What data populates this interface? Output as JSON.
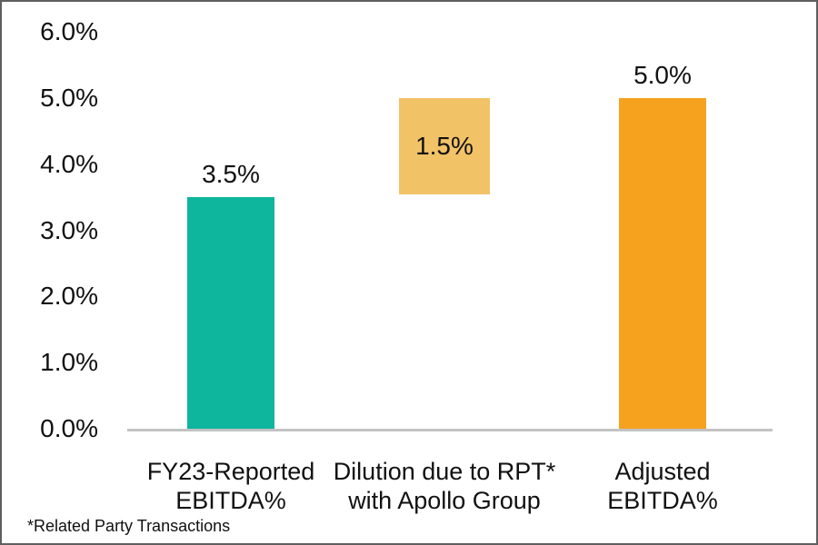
{
  "chart_data": {
    "type": "bar",
    "subtype": "waterfall",
    "title": "",
    "xlabel": "",
    "ylabel": "",
    "ylim": [
      0,
      6
    ],
    "grid": false,
    "legend": null,
    "y_axis": {
      "ticks": [
        "6.0%",
        "5.0%",
        "4.0%",
        "3.0%",
        "2.0%",
        "1.0%",
        "0.0%"
      ],
      "tick_values": [
        6.0,
        5.0,
        4.0,
        3.0,
        2.0,
        1.0,
        0.0
      ]
    },
    "categories": [
      "FY23-Reported EBITDA%",
      "Dilution due to RPT* with Apollo Group",
      "Adjusted EBITDA%"
    ],
    "bars": [
      {
        "name": "fy23-reported-ebitda",
        "label_lines": [
          "FY23-Reported",
          "EBITDA%"
        ],
        "value": 3.5,
        "start": 0.0,
        "end": 3.5,
        "data_label": "3.5%",
        "data_label_position": "above",
        "color": "#0EB69E"
      },
      {
        "name": "dilution-due-to-rpt",
        "label_lines": [
          "Dilution due to RPT*",
          "with Apollo Group"
        ],
        "value": 1.5,
        "start": 3.5,
        "end": 5.0,
        "data_label": "1.5%",
        "data_label_position": "inside",
        "color": "#F2C267"
      },
      {
        "name": "adjusted-ebitda",
        "label_lines": [
          "Adjusted",
          "EBITDA%"
        ],
        "value": 5.0,
        "start": 0.0,
        "end": 5.0,
        "data_label": "5.0%",
        "data_label_position": "above",
        "color": "#F6A21F"
      }
    ]
  },
  "footnote": "*Related Party Transactions",
  "colors": {
    "axis_line": "#C3C3C3",
    "text": "#111111",
    "teal_bar": "#0EB69E",
    "light_orange_bar": "#F2C267",
    "orange_bar": "#F6A21F"
  }
}
